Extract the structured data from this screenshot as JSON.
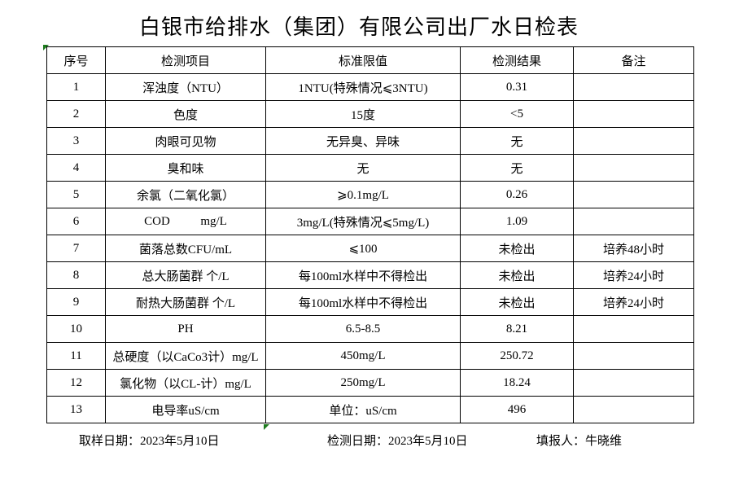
{
  "title": "白银市给排水（集团）有限公司出厂水日检表",
  "table": {
    "headers": {
      "no": "序号",
      "item": "检测项目",
      "limit": "标准限值",
      "result": "检测结果",
      "note": "备注"
    },
    "rows": [
      {
        "no": "1",
        "item": "浑浊度（NTU）",
        "limit": "1NTU(特殊情况⩽3NTU)",
        "result": "0.31",
        "note": ""
      },
      {
        "no": "2",
        "item": "色度",
        "limit": "15度",
        "result": "<5",
        "note": ""
      },
      {
        "no": "3",
        "item": "肉眼可见物",
        "limit": "无异臭、异味",
        "result": "无",
        "note": ""
      },
      {
        "no": "4",
        "item": "臭和味",
        "limit": "无",
        "result": "无",
        "note": ""
      },
      {
        "no": "5",
        "item": "余氯（二氧化氯）",
        "limit": "⩾0.1mg/L",
        "result": "0.26",
        "note": ""
      },
      {
        "no": "6",
        "item": "COD          mg/L",
        "limit": "3mg/L(特殊情况⩽5mg/L)",
        "result": "1.09",
        "note": ""
      },
      {
        "no": "7",
        "item": "菌落总数CFU/mL",
        "limit": "⩽100",
        "result": "未检出",
        "note": "培养48小时"
      },
      {
        "no": "8",
        "item": "总大肠菌群 个/L",
        "limit": "每100ml水样中不得检出",
        "result": "未检出",
        "note": "培养24小时"
      },
      {
        "no": "9",
        "item": "耐热大肠菌群 个/L",
        "limit": "每100ml水样中不得检出",
        "result": "未检出",
        "note": "培养24小时"
      },
      {
        "no": "10",
        "item": "PH",
        "limit": "6.5-8.5",
        "result": "8.21",
        "note": ""
      },
      {
        "no": "11",
        "item": "总硬度（以CaCo3计）mg/L",
        "limit": "450mg/L",
        "result": "250.72",
        "note": ""
      },
      {
        "no": "12",
        "item": "氯化物（以CL-计）mg/L",
        "limit": "250mg/L",
        "result": "18.24",
        "note": ""
      },
      {
        "no": "13",
        "item": "电导率uS/cm",
        "limit": "单位：uS/cm",
        "result": "496",
        "note": ""
      }
    ]
  },
  "footer": {
    "sampling": {
      "label": "取样日期：",
      "value": "2023年5月10日"
    },
    "testing": {
      "label": "检测日期：",
      "value": "2023年5月10日"
    },
    "reporter": {
      "label": "填报人：",
      "value": "牛晓维"
    }
  },
  "markers": {
    "excel_triangle_color": "#1E7B1E"
  }
}
